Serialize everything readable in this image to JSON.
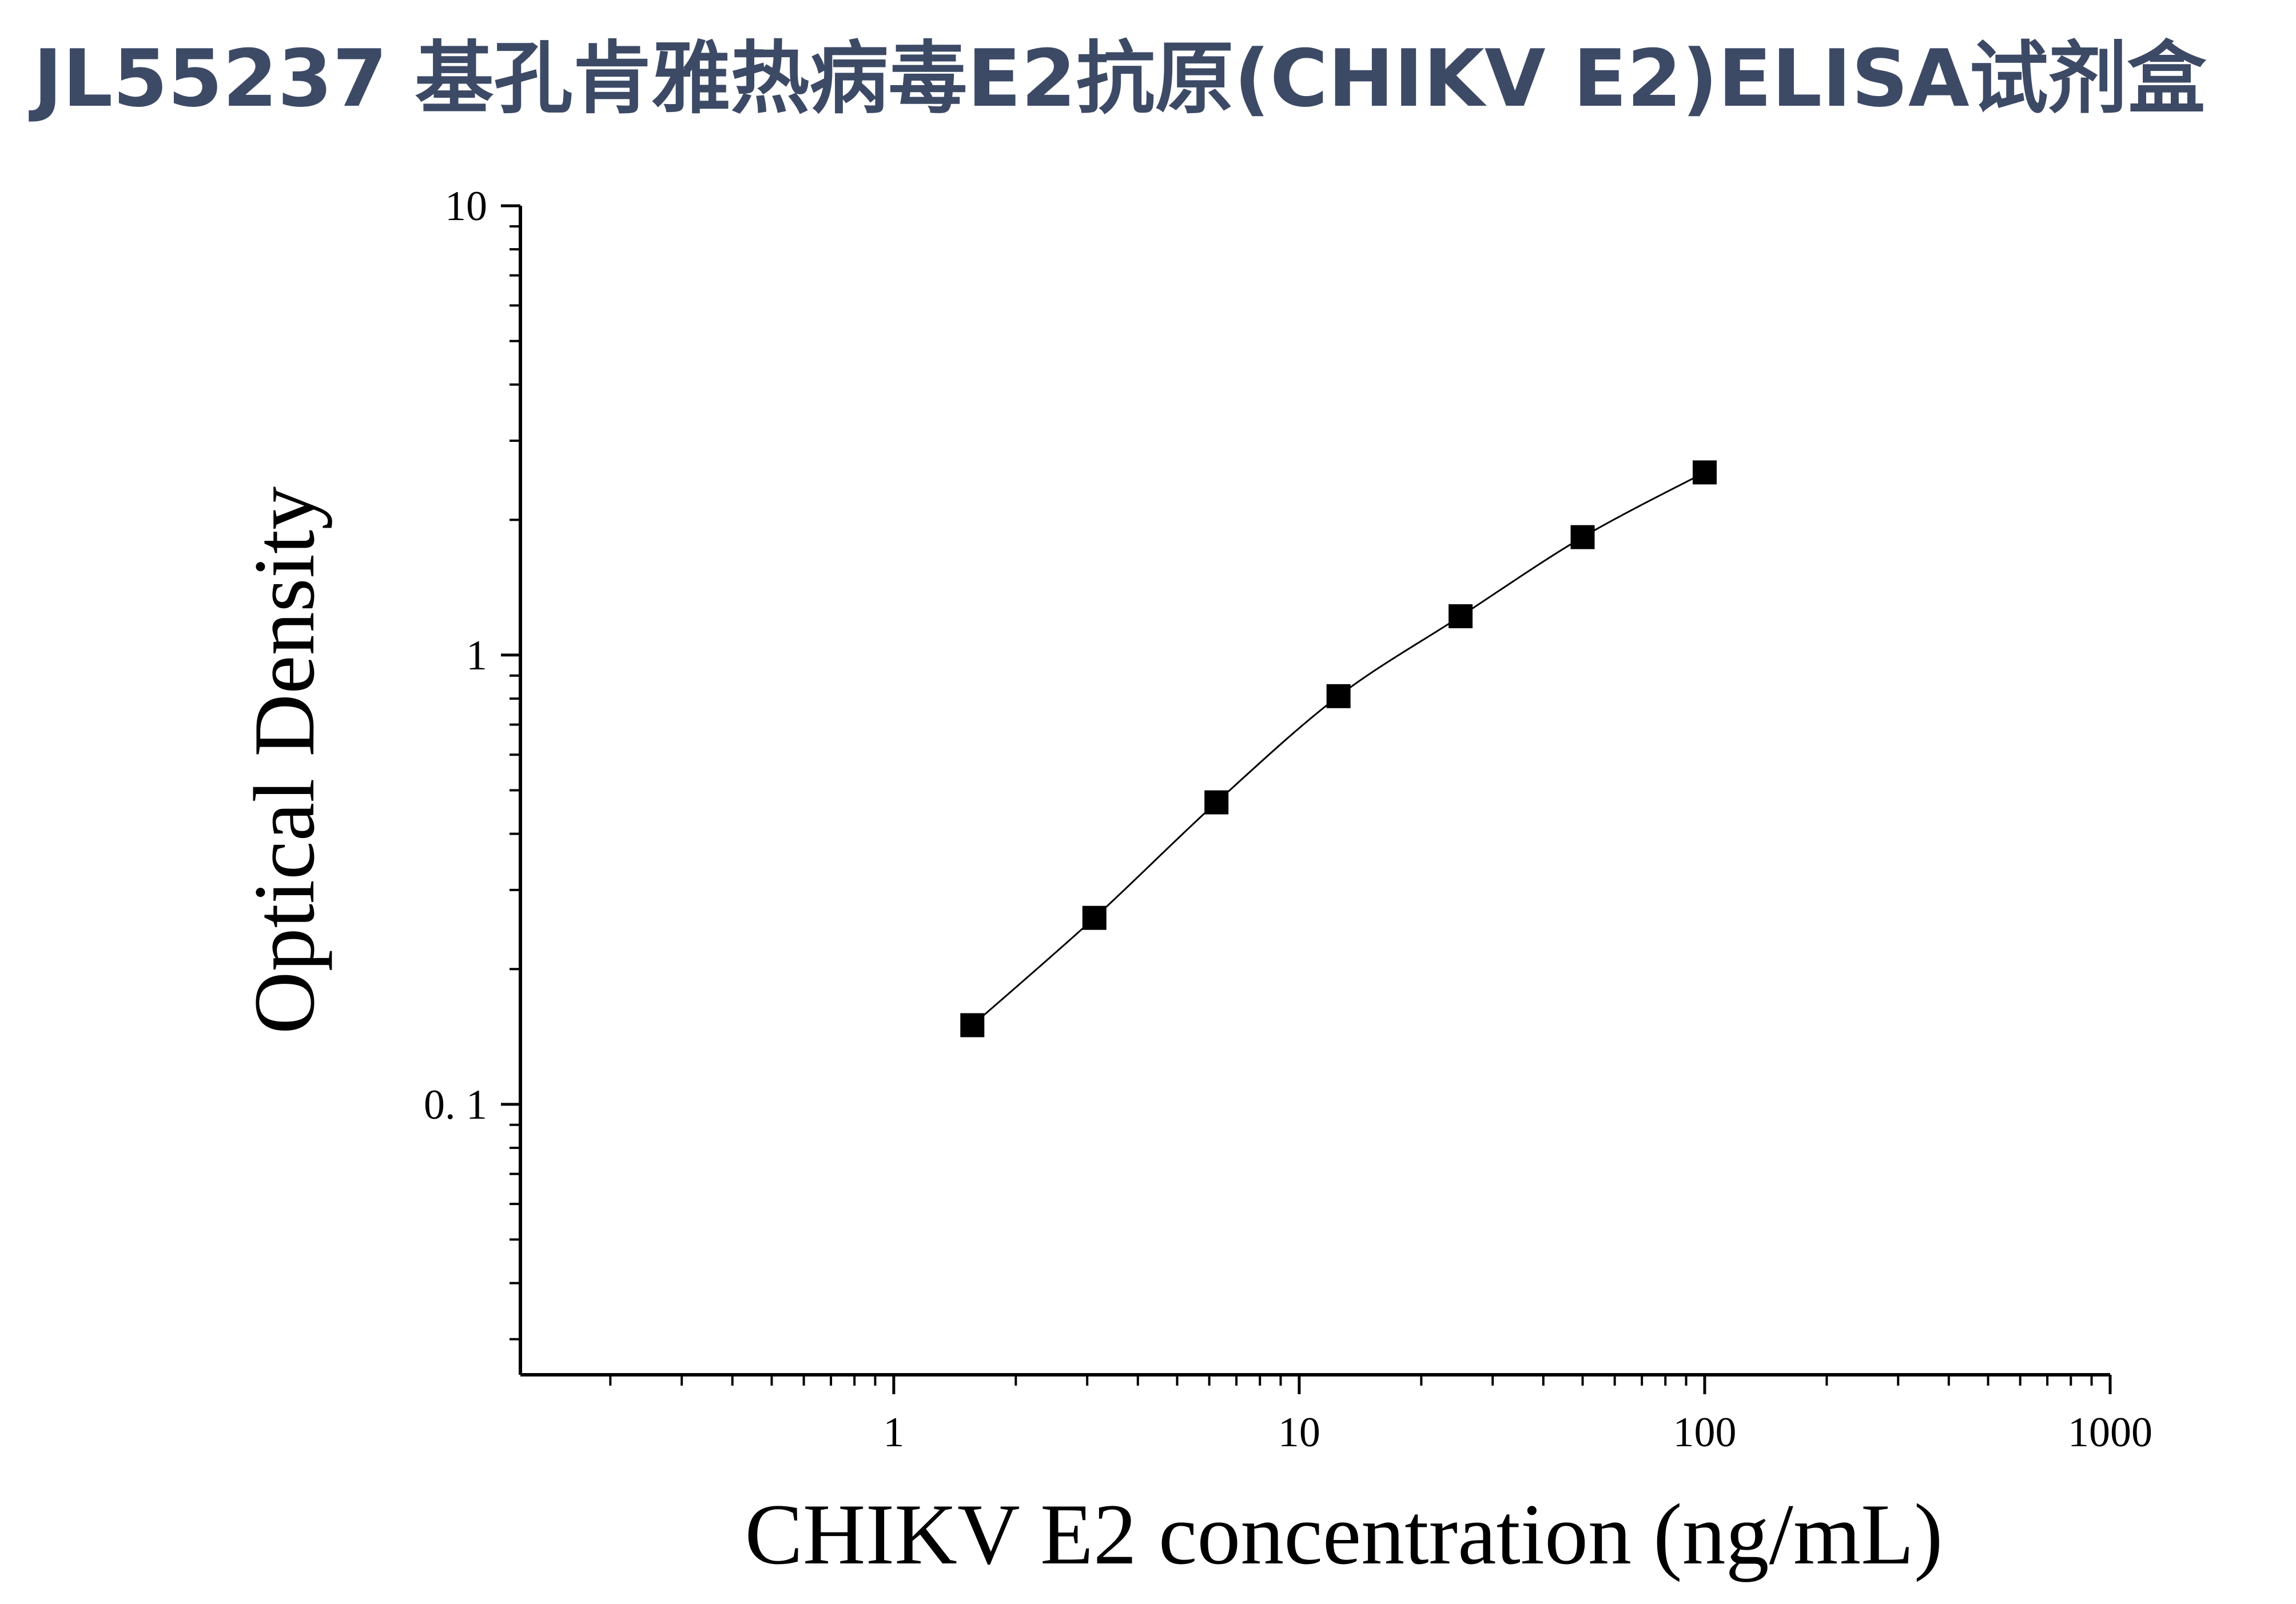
{
  "header": {
    "title": "JL55237 基孔肯雅热病毒E2抗原(CHIKV E2)ELISA试剂盒"
  },
  "colors": {
    "title": "#3d4a66",
    "axis": "#000000",
    "marker": "#000000",
    "curve": "#000000"
  },
  "chart_data": {
    "type": "scatter",
    "x_scale": "log",
    "y_scale": "log",
    "xlabel": "CHIKV E2 concentration (ng/mL)",
    "ylabel": "Optical Density",
    "xlim": [
      0.12,
      1000
    ],
    "ylim": [
      0.025,
      10
    ],
    "x_ticks": [
      {
        "value": 1,
        "label": "1"
      },
      {
        "value": 10,
        "label": "10"
      },
      {
        "value": 100,
        "label": "100"
      },
      {
        "value": 1000,
        "label": "1000"
      }
    ],
    "y_ticks": [
      {
        "value": 0.1,
        "label": "0. 1"
      },
      {
        "value": 1,
        "label": "1"
      },
      {
        "value": 10,
        "label": "10"
      }
    ],
    "grid": false,
    "legend": "none",
    "marker": "square",
    "series": [
      {
        "x": [
          1.5625,
          3.125,
          6.25,
          12.5,
          25,
          50,
          100
        ],
        "y": [
          0.15,
          0.26,
          0.47,
          0.81,
          1.22,
          1.83,
          2.55
        ]
      }
    ]
  }
}
